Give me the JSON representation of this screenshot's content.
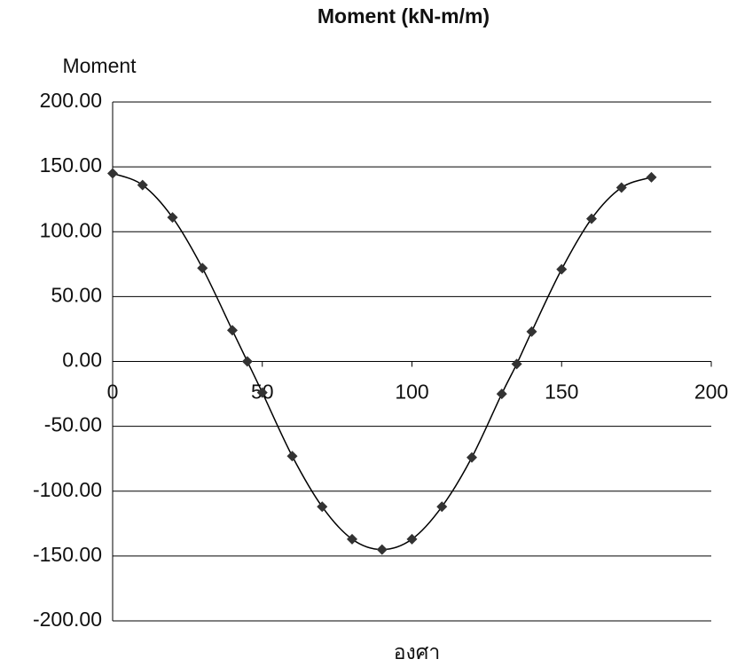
{
  "chart_data": {
    "type": "line",
    "title": "Moment (kN-m/m)",
    "y_label": "Moment",
    "x_label": "องศา",
    "x": [
      0,
      10,
      20,
      30,
      40,
      45,
      50,
      60,
      70,
      80,
      90,
      100,
      110,
      120,
      130,
      135,
      140,
      150,
      160,
      170,
      180
    ],
    "series": [
      {
        "name": "Moment",
        "color": "#333333",
        "values": [
          145,
          136,
          111,
          72,
          24,
          0,
          -24,
          -73,
          -112,
          -137,
          -145,
          -137,
          -112,
          -74,
          -25,
          -2,
          23,
          71,
          110,
          134,
          142
        ]
      }
    ],
    "xlim": [
      0,
      200
    ],
    "xticks": [
      0,
      50,
      100,
      150,
      200
    ],
    "ylim": [
      -200,
      200
    ],
    "yticks": [
      {
        "value": -200,
        "label": "-200.00"
      },
      {
        "value": -150,
        "label": "-150.00"
      },
      {
        "value": -100,
        "label": "-100.00"
      },
      {
        "value": -50,
        "label": "-50.00"
      },
      {
        "value": 0,
        "label": "0.00"
      },
      {
        "value": 50,
        "label": "50.00"
      },
      {
        "value": 100,
        "label": "100.00"
      },
      {
        "value": 150,
        "label": "150.00"
      },
      {
        "value": 200,
        "label": "200.00"
      }
    ],
    "grid": true,
    "smooth": true
  }
}
